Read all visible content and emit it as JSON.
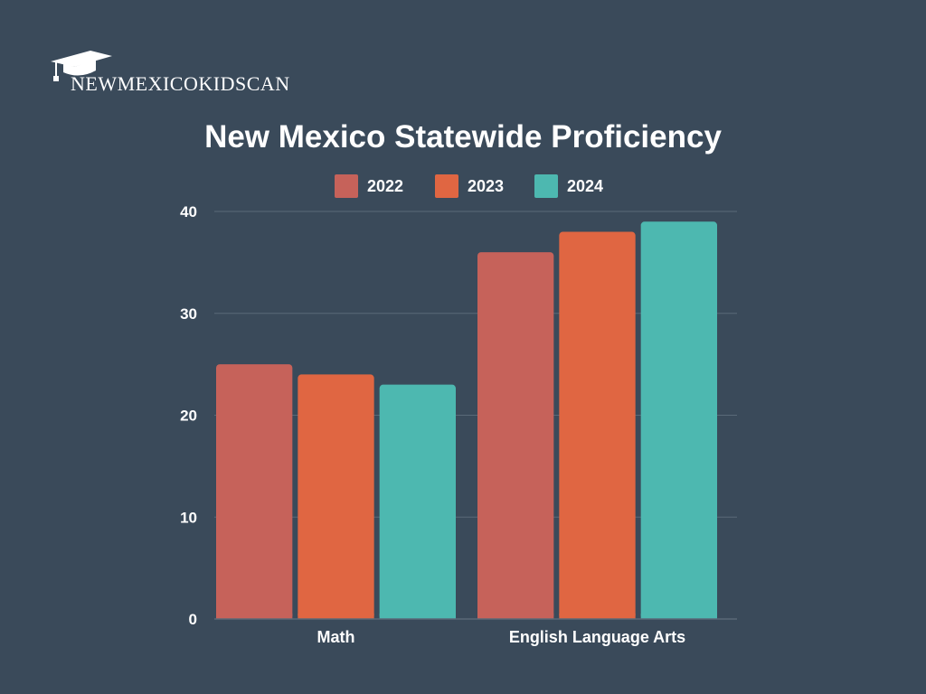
{
  "brand": {
    "wordmark": "NEWMEXICOKIDSCAN"
  },
  "colors": {
    "background": "#3a4a5a",
    "grid": "#5a6978",
    "text": "#ffffff"
  },
  "chart_data": {
    "type": "bar",
    "title": "New Mexico Statewide Proficiency",
    "categories": [
      "Math",
      "English Language Arts"
    ],
    "series": [
      {
        "name": "2022",
        "values": [
          25,
          36
        ],
        "color": "#c6625a"
      },
      {
        "name": "2023",
        "values": [
          24,
          38
        ],
        "color": "#e06642"
      },
      {
        "name": "2024",
        "values": [
          23,
          39
        ],
        "color": "#4db8b0"
      }
    ],
    "ylim": [
      0,
      40
    ],
    "yticks": [
      0,
      10,
      20,
      30,
      40
    ],
    "xlabel": "",
    "ylabel": "",
    "grid": true,
    "legend": "top-center"
  }
}
